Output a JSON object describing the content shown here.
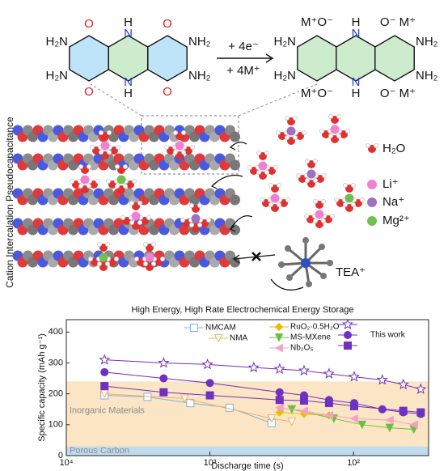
{
  "figure": {
    "left_molecule": {
      "labels": [
        "O",
        "N",
        "H",
        "O",
        "H₂N",
        "H₂N",
        "NH₂",
        "NH₂",
        "O",
        "N",
        "H",
        "O"
      ]
    },
    "reaction": {
      "top": "+ 4e⁻",
      "bottom": "+ 4M⁺"
    },
    "right_molecule": {
      "labels": [
        "M⁺O⁻",
        "N",
        "H",
        "O⁻ M⁺",
        "H₂N",
        "H₂N",
        "NH₂",
        "NH₂",
        "M⁺O⁻",
        "N",
        "H",
        "O⁻ M⁺"
      ]
    },
    "side_label": "Cation Intercalation Pseudocapacitance",
    "ion_legend": [
      "H₂O",
      "Li⁺",
      "Na⁺",
      "Mg²⁺"
    ],
    "tea_label": "TEA⁺"
  },
  "chart_data": {
    "type": "scatter",
    "title": "High Energy, High Rate Electrochemical Energy Storage",
    "x_label": "Discharge time (s)",
    "y_label": "Specific capacity (mAh g⁻¹)",
    "log_x": true,
    "xlim": [
      10000,
      30
    ],
    "ylim": [
      0,
      440
    ],
    "xticks": [
      {
        "value": 10000,
        "label": "10⁴"
      },
      {
        "value": 1000,
        "label": "10³"
      },
      {
        "value": 100,
        "label": "10²"
      }
    ],
    "yticks": [
      0,
      100,
      200,
      300,
      400
    ],
    "bands": [
      {
        "label": "Inorganic Materials",
        "range": [
          30,
          240
        ],
        "color": "#fbe5c4"
      },
      {
        "label": "Porous Carbon",
        "range": [
          0,
          30
        ],
        "color": "#bfdcef"
      }
    ],
    "series": [
      {
        "name": "NMCAM",
        "color": "#7fb3e0",
        "marker": "square-open",
        "x": [
          5420,
          2720,
          1370,
          730,
          372
        ],
        "values": [
          195,
          190,
          170,
          155,
          105
        ]
      },
      {
        "name": "NMA",
        "color": "#f0b060",
        "marker": "tri-down-open",
        "x": [
          5420,
          1500,
          372,
          269
        ],
        "values": [
          200,
          185,
          120,
          110
        ]
      },
      {
        "name": "RuO₂·0.5H₂O",
        "color": "#e8c000",
        "marker": "diamond",
        "x": [
          327,
          221,
          148
        ],
        "values": [
          140,
          135,
          130
        ]
      },
      {
        "name": "MS-MXene",
        "color": "#6abf40",
        "marker": "tri-down",
        "x": [
          269,
          137,
          87,
          56,
          38
        ],
        "values": [
          150,
          120,
          100,
          90,
          85
        ]
      },
      {
        "name": "Nb₂O₅",
        "color": "#f4a0c8",
        "marker": "tri-left",
        "x": [
          327,
          221,
          148,
          99,
          56,
          38
        ],
        "values": [
          155,
          145,
          130,
          120,
          115,
          100
        ]
      },
      {
        "color": "#7030c0",
        "marker": "star",
        "x": [
          5420,
          2100,
          1040,
          495,
          327,
          221,
          148,
          99,
          63,
          45,
          34
        ],
        "values": [
          310,
          300,
          295,
          285,
          280,
          275,
          265,
          255,
          245,
          230,
          215
        ]
      },
      {
        "name": "This work",
        "color": "#7030c0",
        "marker": "circle",
        "x": [
          5420,
          2100,
          1000,
          327,
          221,
          148,
          99,
          63,
          45,
          34
        ],
        "values": [
          270,
          250,
          235,
          205,
          195,
          180,
          170,
          150,
          140,
          135
        ]
      },
      {
        "color": "#7030c0",
        "marker": "square",
        "x": [
          5420,
          2100,
          1000,
          327,
          221,
          148,
          99,
          45,
          34
        ],
        "values": [
          225,
          205,
          195,
          180,
          178,
          170,
          160,
          145,
          140
        ]
      }
    ]
  }
}
